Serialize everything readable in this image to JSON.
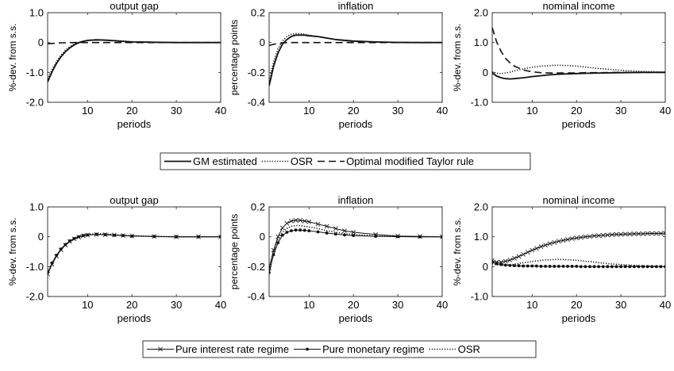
{
  "chart_data": [
    {
      "type": "line",
      "panel": "top-row",
      "title": "output gap",
      "xlabel": "periods",
      "ylabel": "%-dev. from s.s.",
      "xlim": [
        1,
        40
      ],
      "ylim": [
        -2.0,
        1.0
      ],
      "xticks": [
        10,
        20,
        30,
        40
      ],
      "xtick_labels": [
        "10",
        "20",
        "30",
        "40"
      ],
      "yticks": [
        1.0,
        0,
        -1.0,
        -2.0
      ],
      "ytick_labels": [
        "1.0",
        "0",
        "-1.0",
        "-2.0"
      ],
      "x": [
        1,
        2,
        3,
        4,
        5,
        6,
        7,
        8,
        9,
        10,
        12,
        14,
        16,
        18,
        20,
        25,
        30,
        35,
        40
      ],
      "series": [
        {
          "name": "GM estimated",
          "style": "solid",
          "values": [
            -1.32,
            -0.98,
            -0.7,
            -0.48,
            -0.31,
            -0.18,
            -0.08,
            -0.01,
            0.04,
            0.07,
            0.09,
            0.08,
            0.06,
            0.04,
            0.02,
            0.01,
            0.0,
            0.0,
            0.0
          ]
        },
        {
          "name": "OSR",
          "style": "dotted",
          "values": [
            -1.22,
            -0.9,
            -0.63,
            -0.42,
            -0.26,
            -0.14,
            -0.05,
            0.01,
            0.05,
            0.08,
            0.1,
            0.09,
            0.07,
            0.05,
            0.03,
            0.01,
            0.0,
            0.0,
            0.0
          ]
        },
        {
          "name": "Optimal modified Taylor rule",
          "style": "dashed",
          "values": [
            -0.04,
            -0.03,
            -0.02,
            -0.01,
            -0.01,
            0.0,
            0.0,
            0.0,
            0.0,
            0.0,
            0.0,
            0.0,
            0.0,
            0.0,
            0.0,
            0.0,
            0.0,
            0.0,
            0.0
          ]
        }
      ]
    },
    {
      "type": "line",
      "panel": "top-row",
      "title": "inflation",
      "xlabel": "periods",
      "ylabel": "percentage points",
      "xlim": [
        1,
        40
      ],
      "ylim": [
        -0.4,
        0.2
      ],
      "xticks": [
        10,
        20,
        30,
        40
      ],
      "xtick_labels": [
        "10",
        "20",
        "30",
        "40"
      ],
      "yticks": [
        0.2,
        0,
        -0.2,
        -0.4
      ],
      "ytick_labels": [
        "0.2",
        "0",
        "-0.2",
        "-0.4"
      ],
      "x": [
        1,
        2,
        3,
        4,
        5,
        6,
        7,
        8,
        9,
        10,
        12,
        14,
        16,
        18,
        20,
        25,
        30,
        35,
        40
      ],
      "series": [
        {
          "name": "GM estimated",
          "style": "solid",
          "values": [
            -0.29,
            -0.16,
            -0.07,
            -0.01,
            0.02,
            0.04,
            0.05,
            0.05,
            0.05,
            0.045,
            0.04,
            0.03,
            0.02,
            0.015,
            0.01,
            0.004,
            0.001,
            0.0,
            0.0
          ]
        },
        {
          "name": "OSR",
          "style": "dotted",
          "values": [
            -0.26,
            -0.13,
            -0.04,
            0.01,
            0.04,
            0.055,
            0.06,
            0.06,
            0.055,
            0.05,
            0.04,
            0.03,
            0.02,
            0.012,
            0.008,
            0.003,
            0.001,
            0.0,
            0.0
          ]
        },
        {
          "name": "Optimal modified Taylor rule",
          "style": "dashed",
          "values": [
            -0.02,
            -0.012,
            -0.006,
            -0.003,
            0.0,
            0.0,
            0.0,
            0.0,
            0.0,
            0.0,
            0.0,
            0.0,
            0.0,
            0.0,
            0.0,
            0.0,
            0.0,
            0.0,
            0.0
          ]
        }
      ]
    },
    {
      "type": "line",
      "panel": "top-row",
      "title": "nominal income",
      "xlabel": "periods",
      "ylabel": "%-dev. from s.s.",
      "xlim": [
        1,
        40
      ],
      "ylim": [
        -1.0,
        2.0
      ],
      "xticks": [
        10,
        20,
        30,
        40
      ],
      "xtick_labels": [
        "10",
        "20",
        "30",
        "40"
      ],
      "yticks": [
        2.0,
        1.0,
        0,
        -1.0
      ],
      "ytick_labels": [
        "2.0",
        "1.0",
        "0",
        "-1.0"
      ],
      "x": [
        1,
        2,
        3,
        4,
        5,
        6,
        8,
        10,
        12,
        14,
        16,
        18,
        20,
        22,
        25,
        30,
        35,
        40
      ],
      "series": [
        {
          "name": "GM estimated",
          "style": "solid",
          "values": [
            -0.02,
            -0.12,
            -0.18,
            -0.21,
            -0.22,
            -0.21,
            -0.18,
            -0.14,
            -0.11,
            -0.08,
            -0.06,
            -0.05,
            -0.04,
            -0.03,
            -0.02,
            -0.01,
            0.0,
            0.0
          ]
        },
        {
          "name": "OSR",
          "style": "dotted",
          "values": [
            0.02,
            -0.03,
            -0.04,
            -0.02,
            0.01,
            0.05,
            0.12,
            0.17,
            0.21,
            0.23,
            0.24,
            0.23,
            0.21,
            0.18,
            0.13,
            0.07,
            0.03,
            0.01
          ]
        },
        {
          "name": "Optimal modified Taylor rule",
          "style": "dashed",
          "values": [
            1.5,
            1.02,
            0.7,
            0.47,
            0.32,
            0.21,
            0.08,
            0.02,
            -0.01,
            -0.02,
            -0.02,
            -0.02,
            -0.02,
            -0.01,
            -0.01,
            0.0,
            0.0,
            0.0
          ]
        }
      ]
    },
    {
      "type": "line",
      "panel": "bottom-row",
      "title": "output gap",
      "xlabel": "periods",
      "ylabel": "%-dev. from s.s.",
      "xlim": [
        1,
        40
      ],
      "ylim": [
        -2.0,
        1.0
      ],
      "xticks": [
        10,
        20,
        30,
        40
      ],
      "xtick_labels": [
        "10",
        "20",
        "30",
        "40"
      ],
      "yticks": [
        1.0,
        0,
        -1.0,
        -2.0
      ],
      "ytick_labels": [
        "1.0",
        "0",
        "-1.0",
        "-2.0"
      ],
      "x": [
        1,
        2,
        3,
        4,
        5,
        6,
        7,
        8,
        9,
        10,
        12,
        14,
        16,
        18,
        20,
        25,
        30,
        35,
        40
      ],
      "series": [
        {
          "name": "Pure interest rate regime",
          "style": "x-marker",
          "values": [
            -1.25,
            -0.92,
            -0.65,
            -0.44,
            -0.28,
            -0.16,
            -0.07,
            -0.01,
            0.03,
            0.06,
            0.08,
            0.07,
            0.06,
            0.04,
            0.03,
            0.01,
            0.0,
            0.0,
            0.0
          ]
        },
        {
          "name": "Pure monetary regime",
          "style": "dot-marker",
          "values": [
            -1.2,
            -0.88,
            -0.62,
            -0.41,
            -0.26,
            -0.14,
            -0.06,
            0.0,
            0.04,
            0.06,
            0.08,
            0.07,
            0.05,
            0.04,
            0.02,
            0.01,
            0.0,
            0.0,
            0.0
          ]
        },
        {
          "name": "OSR",
          "style": "dotted",
          "values": [
            -1.22,
            -0.9,
            -0.63,
            -0.42,
            -0.26,
            -0.14,
            -0.05,
            0.01,
            0.05,
            0.08,
            0.1,
            0.09,
            0.07,
            0.05,
            0.03,
            0.01,
            0.0,
            0.0,
            0.0
          ]
        }
      ]
    },
    {
      "type": "line",
      "panel": "bottom-row",
      "title": "inflation",
      "xlabel": "periods",
      "ylabel": "percentage points",
      "xlim": [
        1,
        40
      ],
      "ylim": [
        -0.4,
        0.2
      ],
      "xticks": [
        10,
        20,
        30,
        40
      ],
      "xtick_labels": [
        "10",
        "20",
        "30",
        "40"
      ],
      "yticks": [
        0.2,
        0,
        -0.2,
        -0.4
      ],
      "ytick_labels": [
        "0.2",
        "0",
        "-0.2",
        "-0.4"
      ],
      "x": [
        1,
        2,
        3,
        4,
        5,
        6,
        7,
        8,
        9,
        10,
        12,
        14,
        16,
        18,
        20,
        25,
        30,
        35,
        40
      ],
      "series": [
        {
          "name": "Pure interest rate regime",
          "style": "x-marker",
          "values": [
            -0.21,
            -0.09,
            0.0,
            0.06,
            0.09,
            0.105,
            0.11,
            0.11,
            0.105,
            0.1,
            0.085,
            0.07,
            0.055,
            0.04,
            0.03,
            0.015,
            0.005,
            0.002,
            0.0
          ]
        },
        {
          "name": "Pure monetary regime",
          "style": "dot-marker",
          "values": [
            -0.24,
            -0.12,
            -0.04,
            0.01,
            0.03,
            0.04,
            0.045,
            0.045,
            0.043,
            0.04,
            0.033,
            0.025,
            0.018,
            0.012,
            0.008,
            0.003,
            0.001,
            0.0,
            0.0
          ]
        },
        {
          "name": "OSR",
          "style": "dotted",
          "values": [
            -0.22,
            -0.1,
            -0.02,
            0.03,
            0.055,
            0.07,
            0.075,
            0.075,
            0.07,
            0.065,
            0.055,
            0.04,
            0.03,
            0.02,
            0.015,
            0.005,
            0.002,
            0.0,
            0.0
          ]
        }
      ]
    },
    {
      "type": "line",
      "panel": "bottom-row",
      "title": "nominal income",
      "xlabel": "periods",
      "ylabel": "%-dev. from s.s.",
      "xlim": [
        1,
        40
      ],
      "ylim": [
        -1.0,
        2.0
      ],
      "xticks": [
        10,
        20,
        30,
        40
      ],
      "xtick_labels": [
        "10",
        "20",
        "30",
        "40"
      ],
      "yticks": [
        2.0,
        1.0,
        0,
        -1.0
      ],
      "ytick_labels": [
        "2.0",
        "1.0",
        "0",
        "-1.0"
      ],
      "x": [
        1,
        2,
        3,
        4,
        5,
        6,
        7,
        8,
        9,
        10,
        11,
        12,
        13,
        14,
        15,
        16,
        17,
        18,
        19,
        20,
        21,
        22,
        23,
        24,
        25,
        26,
        27,
        28,
        29,
        30,
        31,
        32,
        33,
        34,
        35,
        36,
        37,
        38,
        39,
        40
      ],
      "series": [
        {
          "name": "Pure interest rate regime",
          "style": "x-marker",
          "values": [
            0.2,
            0.15,
            0.15,
            0.18,
            0.22,
            0.28,
            0.34,
            0.41,
            0.48,
            0.55,
            0.61,
            0.67,
            0.72,
            0.77,
            0.81,
            0.85,
            0.88,
            0.91,
            0.94,
            0.96,
            0.98,
            1.0,
            1.01,
            1.03,
            1.04,
            1.05,
            1.06,
            1.07,
            1.08,
            1.08,
            1.09,
            1.09,
            1.1,
            1.1,
            1.1,
            1.11,
            1.11,
            1.11,
            1.11,
            1.12
          ]
        },
        {
          "name": "Pure monetary regime",
          "style": "dot-marker",
          "values": [
            0.15,
            0.1,
            0.07,
            0.05,
            0.04,
            0.03,
            0.03,
            0.02,
            0.02,
            0.02,
            0.02,
            0.01,
            0.01,
            0.01,
            0.01,
            0.01,
            0.01,
            0.01,
            0.01,
            0.01,
            0.0,
            0.0,
            0.0,
            0.0,
            0.0,
            0.0,
            0.0,
            0.0,
            0.0,
            0.0,
            0.0,
            0.0,
            0.0,
            0.0,
            0.0,
            0.0,
            0.0,
            0.0,
            0.0,
            0.0
          ]
        },
        {
          "name": "OSR",
          "style": "dotted",
          "values": [
            0.1,
            0.06,
            0.05,
            0.05,
            0.06,
            0.08,
            0.1,
            0.13,
            0.15,
            0.17,
            0.19,
            0.21,
            0.22,
            0.23,
            0.24,
            0.24,
            0.24,
            0.23,
            0.22,
            0.21,
            0.2,
            0.18,
            0.17,
            0.15,
            0.13,
            0.12,
            0.1,
            0.09,
            0.08,
            0.07,
            0.06,
            0.05,
            0.04,
            0.03,
            0.03,
            0.02,
            0.02,
            0.01,
            0.01,
            0.01
          ]
        }
      ]
    }
  ],
  "legends": [
    {
      "entries": [
        {
          "label": "GM estimated",
          "style": "solid"
        },
        {
          "label": "OSR",
          "style": "dotted"
        },
        {
          "label": "Optimal modified Taylor rule",
          "style": "dashed"
        }
      ]
    },
    {
      "entries": [
        {
          "label": "Pure interest rate regime",
          "style": "x-marker"
        },
        {
          "label": "Pure monetary regime",
          "style": "dot-marker"
        },
        {
          "label": "OSR",
          "style": "dotted"
        }
      ]
    }
  ]
}
